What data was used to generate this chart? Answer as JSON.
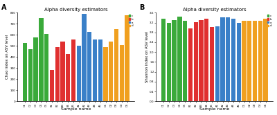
{
  "title": "Alpha diversity estimators",
  "xlabel": "Sample name",
  "ylabel_a": "Chao index on ASV level",
  "ylabel_b": "Shannon index on ASV level",
  "groups": [
    "C",
    "B",
    "A",
    "D"
  ],
  "colors": [
    "#3aaa3a",
    "#e03030",
    "#3a80c8",
    "#f0a020"
  ],
  "legend_labels": [
    "c",
    "b",
    "a",
    "d"
  ],
  "samples_a": [
    "C1",
    "C2",
    "C3",
    "C4",
    "C5",
    "B1",
    "B2",
    "B3",
    "B4",
    "B5",
    "A1",
    "A2",
    "A3",
    "A4",
    "A5",
    "D1",
    "D2",
    "D3",
    "D4",
    "D5"
  ],
  "values_a": [
    530,
    470,
    580,
    750,
    610,
    285,
    490,
    540,
    430,
    560,
    500,
    790,
    630,
    560,
    560,
    490,
    540,
    650,
    510,
    780
  ],
  "samples_b": [
    "C1",
    "C2",
    "C3",
    "C4",
    "C5",
    "B1",
    "B2",
    "B3",
    "B4",
    "B5",
    "A1",
    "A2",
    "A3",
    "A4",
    "A5",
    "D1",
    "D2",
    "D3",
    "D4",
    "D5"
  ],
  "values_b": [
    3.35,
    3.2,
    3.3,
    3.45,
    3.27,
    2.97,
    3.22,
    3.3,
    3.37,
    3.02,
    3.05,
    3.42,
    3.42,
    3.37,
    3.18,
    3.27,
    3.27,
    3.27,
    3.27,
    3.37
  ],
  "ylim_a": [
    0,
    800
  ],
  "ylim_b": [
    0,
    3.6
  ],
  "yticks_a": [
    0,
    100,
    200,
    300,
    400,
    500,
    600,
    700,
    800
  ],
  "yticks_b": [
    0.0,
    0.4,
    0.8,
    1.2,
    1.6,
    2.0,
    2.4,
    2.8,
    3.2,
    3.6
  ],
  "bg_color": "#ffffff",
  "bar_width": 0.82
}
